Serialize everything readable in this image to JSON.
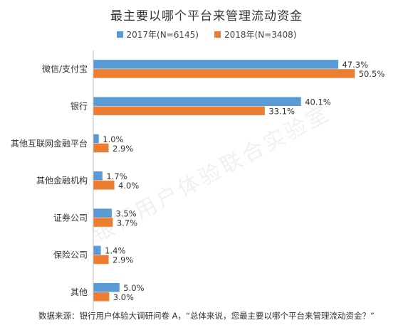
{
  "chart_data": {
    "type": "bar",
    "orientation": "horizontal",
    "title": "最主要以哪个平台来管理流动资金",
    "categories": [
      "微信/支付宝",
      "银行",
      "其他互联网金融平台",
      "其他金融机构",
      "证券公司",
      "保险公司",
      "其他"
    ],
    "series": [
      {
        "name": "2017年(N=6145)",
        "color": "#5b9bd5",
        "values": [
          47.3,
          40.1,
          1.0,
          1.7,
          3.5,
          1.4,
          5.0
        ],
        "labels": [
          "47.3%",
          "40.1%",
          "1.0%",
          "1.7%",
          "3.5%",
          "1.4%",
          "5.0%"
        ]
      },
      {
        "name": "2018年(N=3408)",
        "color": "#ed7d31",
        "values": [
          50.5,
          33.1,
          2.9,
          4.0,
          3.7,
          2.9,
          3.0
        ],
        "labels": [
          "50.5%",
          "33.1%",
          "2.9%",
          "4.0%",
          "3.7%",
          "2.9%",
          "3.0%"
        ]
      }
    ],
    "xlim": [
      0,
      55
    ],
    "legend_position": "top",
    "grid": false
  },
  "footnote": "数据来源：银行用户体验大调研问卷 A，“总体来说，您最主要以哪个平台来管理流动资金？”",
  "watermark": "银行用户体验联合实验室"
}
